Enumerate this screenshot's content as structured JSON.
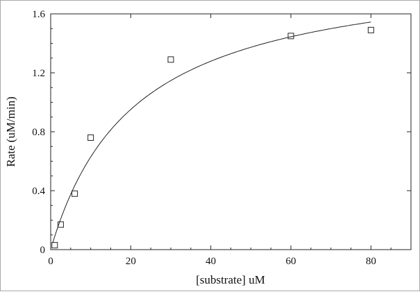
{
  "chart_data": {
    "type": "scatter",
    "title": "",
    "xlabel": "[substrate] uM",
    "ylabel": "Rate (uM/min)",
    "xlim": [
      0,
      90
    ],
    "ylim": [
      0,
      1.6
    ],
    "x_ticks": [
      0,
      20,
      40,
      60,
      80
    ],
    "x_tick_labels": [
      "0",
      "20",
      "40",
      "60",
      "80"
    ],
    "y_ticks": [
      0,
      0.4,
      0.8,
      1.2,
      1.6
    ],
    "y_tick_labels": [
      "0",
      "0.4",
      "0.8",
      "1.2",
      "1.6"
    ],
    "grid": false,
    "legend": "none",
    "series": [
      {
        "marker": "open-square",
        "x": [
          1,
          2.5,
          6,
          10,
          30,
          60,
          80
        ],
        "y": [
          0.03,
          0.17,
          0.38,
          0.76,
          1.29,
          1.45,
          1.49
        ]
      }
    ],
    "fit_curve": {
      "model": "michaelis-menten",
      "vmax": 1.95,
      "km": 21.0,
      "x_range": [
        0.5,
        80
      ]
    },
    "colors": {
      "ink": "#111111",
      "frame": "#a9a9a9"
    }
  }
}
